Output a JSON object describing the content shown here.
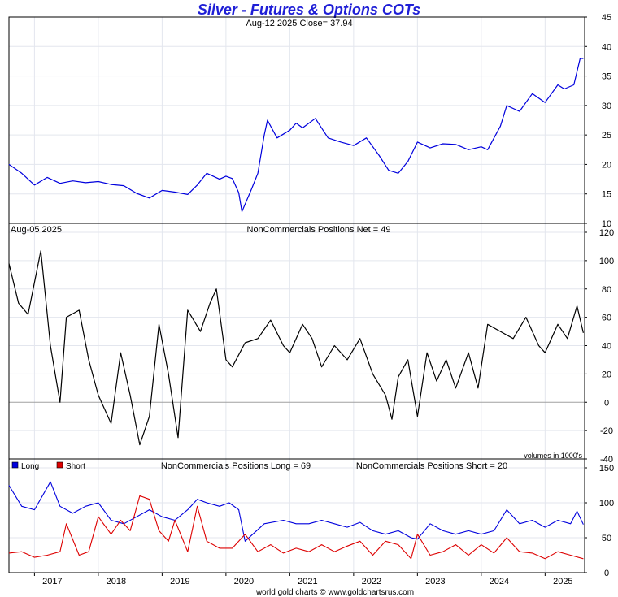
{
  "title": "Silver - Futures & Options COTs",
  "footer": "world gold charts © www.goldchartsrus.com",
  "chart_data": [
    {
      "panel": "price",
      "type": "line",
      "header_left": "Aug-12  2025   Close= 37.94",
      "color": "#0000dd",
      "ylim": [
        10,
        45
      ],
      "yticks": [
        10,
        15,
        20,
        25,
        30,
        35,
        40,
        45
      ],
      "x": [
        2016.6,
        2016.8,
        2017.0,
        2017.2,
        2017.4,
        2017.6,
        2017.8,
        2018.0,
        2018.2,
        2018.4,
        2018.6,
        2018.8,
        2019.0,
        2019.2,
        2019.4,
        2019.55,
        2019.7,
        2019.9,
        2020.0,
        2020.1,
        2020.2,
        2020.25,
        2020.4,
        2020.5,
        2020.6,
        2020.65,
        2020.8,
        2021.0,
        2021.1,
        2021.2,
        2021.4,
        2021.6,
        2021.8,
        2022.0,
        2022.2,
        2022.4,
        2022.55,
        2022.7,
        2022.85,
        2023.0,
        2023.2,
        2023.4,
        2023.6,
        2023.8,
        2024.0,
        2024.1,
        2024.3,
        2024.4,
        2024.6,
        2024.8,
        2025.0,
        2025.2,
        2025.3,
        2025.45,
        2025.55,
        2025.6
      ],
      "values": [
        20.0,
        18.5,
        16.5,
        17.8,
        16.8,
        17.2,
        16.9,
        17.1,
        16.6,
        16.4,
        15.1,
        14.3,
        15.6,
        15.3,
        14.9,
        16.5,
        18.5,
        17.5,
        18.0,
        17.6,
        15.2,
        12.0,
        15.8,
        18.5,
        25.0,
        27.5,
        24.5,
        25.8,
        27.0,
        26.2,
        27.8,
        24.5,
        23.8,
        23.2,
        24.5,
        21.5,
        19.0,
        18.5,
        20.5,
        23.8,
        22.8,
        23.5,
        23.4,
        22.5,
        23.0,
        22.5,
        26.5,
        30.0,
        29.0,
        32.0,
        30.5,
        33.5,
        32.8,
        33.5,
        38.0,
        37.94
      ]
    },
    {
      "panel": "net",
      "type": "line",
      "header_left": "Aug-05  2025",
      "header_center": "NonCommercials Positions Net = 49",
      "note": "volumes in 1000's",
      "color": "#000000",
      "ylim": [
        -40,
        120
      ],
      "yticks": [
        -40,
        -20,
        0,
        20,
        40,
        60,
        80,
        100,
        120
      ],
      "x": [
        2016.6,
        2016.75,
        2016.9,
        2017.1,
        2017.25,
        2017.4,
        2017.5,
        2017.7,
        2017.85,
        2018.0,
        2018.2,
        2018.35,
        2018.5,
        2018.65,
        2018.8,
        2018.95,
        2019.1,
        2019.25,
        2019.4,
        2019.6,
        2019.75,
        2019.85,
        2020.0,
        2020.1,
        2020.3,
        2020.5,
        2020.7,
        2020.9,
        2021.0,
        2021.2,
        2021.35,
        2021.5,
        2021.7,
        2021.9,
        2022.1,
        2022.3,
        2022.5,
        2022.6,
        2022.7,
        2022.85,
        2023.0,
        2023.15,
        2023.3,
        2023.45,
        2023.6,
        2023.8,
        2023.95,
        2024.1,
        2024.3,
        2024.5,
        2024.7,
        2024.9,
        2025.0,
        2025.2,
        2025.35,
        2025.5,
        2025.6
      ],
      "values": [
        98,
        70,
        62,
        107,
        40,
        0,
        60,
        65,
        30,
        5,
        -15,
        35,
        5,
        -30,
        -10,
        55,
        20,
        -25,
        65,
        50,
        70,
        80,
        30,
        25,
        42,
        45,
        58,
        40,
        35,
        55,
        45,
        25,
        40,
        30,
        45,
        20,
        5,
        -12,
        18,
        30,
        -10,
        35,
        15,
        30,
        10,
        35,
        10,
        55,
        50,
        45,
        60,
        40,
        35,
        55,
        45,
        68,
        49
      ]
    },
    {
      "panel": "long_short",
      "type": "line",
      "header_center": "NonCommercials Positions Long = 69",
      "header_right": "NonCommercials Positions Short = 20",
      "ylim": [
        0,
        150
      ],
      "yticks": [
        0,
        50,
        100,
        150
      ],
      "x_ticks": [
        "2017",
        "2018",
        "2019",
        "2020",
        "2021",
        "2022",
        "2023",
        "2024",
        "2025"
      ],
      "series": [
        {
          "name": "Long",
          "color": "#0000dd",
          "x": [
            2016.6,
            2016.8,
            2017.0,
            2017.25,
            2017.4,
            2017.6,
            2017.8,
            2018.0,
            2018.2,
            2018.4,
            2018.6,
            2018.8,
            2019.0,
            2019.2,
            2019.4,
            2019.55,
            2019.7,
            2019.9,
            2020.05,
            2020.2,
            2020.3,
            2020.6,
            2020.9,
            2021.1,
            2021.3,
            2021.5,
            2021.7,
            2021.9,
            2022.1,
            2022.3,
            2022.5,
            2022.7,
            2022.9,
            2023.0,
            2023.2,
            2023.4,
            2023.6,
            2023.8,
            2024.0,
            2024.2,
            2024.4,
            2024.6,
            2024.8,
            2025.0,
            2025.2,
            2025.4,
            2025.5,
            2025.6
          ],
          "values": [
            125,
            95,
            90,
            130,
            95,
            85,
            95,
            100,
            75,
            70,
            80,
            90,
            80,
            75,
            90,
            105,
            100,
            95,
            100,
            90,
            45,
            70,
            75,
            70,
            70,
            75,
            70,
            65,
            72,
            60,
            55,
            60,
            50,
            48,
            70,
            60,
            55,
            60,
            55,
            60,
            90,
            70,
            75,
            65,
            75,
            70,
            88,
            69
          ]
        },
        {
          "name": "Short",
          "color": "#dd0000",
          "x": [
            2016.6,
            2016.8,
            2017.0,
            2017.2,
            2017.4,
            2017.5,
            2017.7,
            2017.85,
            2018.0,
            2018.2,
            2018.35,
            2018.5,
            2018.65,
            2018.8,
            2018.95,
            2019.1,
            2019.2,
            2019.4,
            2019.55,
            2019.7,
            2019.9,
            2020.1,
            2020.3,
            2020.5,
            2020.7,
            2020.9,
            2021.1,
            2021.3,
            2021.5,
            2021.7,
            2021.9,
            2022.1,
            2022.3,
            2022.5,
            2022.7,
            2022.9,
            2023.0,
            2023.2,
            2023.4,
            2023.6,
            2023.8,
            2024.0,
            2024.2,
            2024.4,
            2024.6,
            2024.8,
            2025.0,
            2025.2,
            2025.4,
            2025.6
          ],
          "values": [
            28,
            30,
            22,
            25,
            30,
            70,
            25,
            30,
            80,
            55,
            75,
            60,
            110,
            105,
            60,
            45,
            75,
            30,
            95,
            45,
            35,
            35,
            55,
            30,
            40,
            28,
            35,
            30,
            40,
            30,
            38,
            45,
            25,
            45,
            40,
            20,
            55,
            25,
            30,
            40,
            25,
            40,
            28,
            50,
            30,
            28,
            20,
            30,
            25,
            20
          ]
        }
      ]
    }
  ]
}
